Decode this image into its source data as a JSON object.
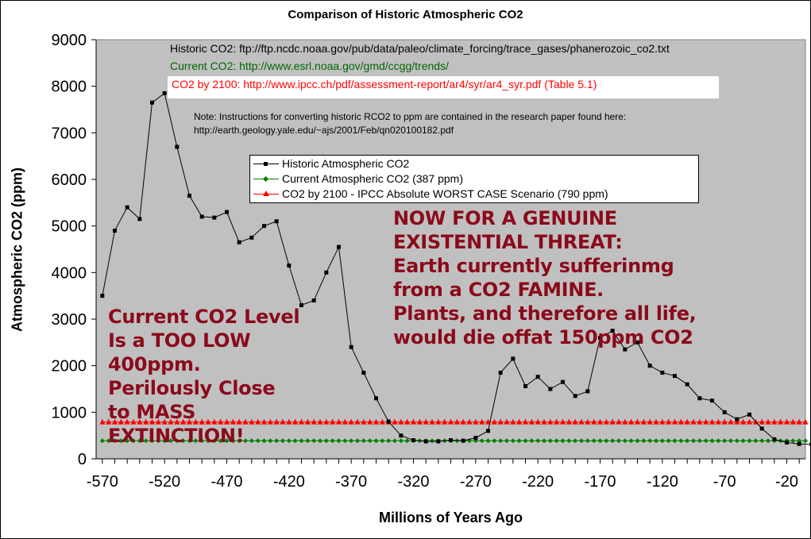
{
  "chart_data": {
    "type": "line",
    "title": "Comparison of Historic Atmospheric CO2",
    "xlabel": "Millions of Years Ago",
    "ylabel": "Atmospheric CO2 (ppm)",
    "xlim": [
      -575,
      -5
    ],
    "ylim": [
      0,
      9000
    ],
    "x_ticks": [
      -570,
      -520,
      -470,
      -420,
      -370,
      -320,
      -270,
      -220,
      -170,
      -120,
      -70,
      -20
    ],
    "y_ticks": [
      0,
      1000,
      2000,
      3000,
      4000,
      5000,
      6000,
      7000,
      8000,
      9000
    ],
    "grid": false,
    "series": [
      {
        "name": "Historic Atmospheric CO2",
        "color": "#000000",
        "marker": "square",
        "x": [
          -570,
          -560,
          -550,
          -540,
          -530,
          -520,
          -510,
          -500,
          -490,
          -480,
          -470,
          -460,
          -450,
          -440,
          -430,
          -420,
          -410,
          -400,
          -390,
          -380,
          -370,
          -360,
          -350,
          -340,
          -330,
          -320,
          -310,
          -300,
          -290,
          -280,
          -270,
          -260,
          -250,
          -240,
          -230,
          -220,
          -210,
          -200,
          -190,
          -180,
          -170,
          -160,
          -150,
          -140,
          -130,
          -120,
          -110,
          -100,
          -90,
          -80,
          -70,
          -60,
          -50,
          -40,
          -30,
          -20,
          -10,
          0
        ],
        "values": [
          3500,
          4900,
          5400,
          5150,
          7650,
          7850,
          6700,
          5650,
          5200,
          5180,
          5300,
          4650,
          4750,
          5000,
          5100,
          4150,
          3300,
          3400,
          4000,
          4550,
          2400,
          1850,
          1300,
          800,
          500,
          400,
          375,
          375,
          400,
          390,
          450,
          600,
          1850,
          2150,
          1560,
          1760,
          1500,
          1650,
          1350,
          1450,
          2600,
          2750,
          2350,
          2500,
          2000,
          1850,
          1780,
          1600,
          1300,
          1250,
          1000,
          850,
          950,
          650,
          420,
          350,
          320,
          310
        ]
      },
      {
        "name": "Current Atmospheric CO2 (387 ppm)",
        "color": "#008000",
        "marker": "diamond",
        "constant": 387
      },
      {
        "name": "CO2 by 2100 - IPCC Absolute WORST CASE Scenario (790 ppm)",
        "color": "#ff0000",
        "marker": "triangle",
        "constant": 790
      }
    ],
    "plot_background": "#c0c0c0",
    "sources": {
      "historic": "Historic CO2: ftp://ftp.ncdc.noaa.gov/pub/data/paleo/climate_forcing/trace_gases/phanerozoic_co2.txt",
      "current": "Current CO2: http://www.esrl.noaa.gov/gmd/ccgg/trends/",
      "ipcc": "CO2 by 2100: http://www.ipcc.ch/pdf/assessment-report/ar4/syr/ar4_syr.pdf (Table 5.1)"
    },
    "note_line1": "Note: Instructions for converting historic RCO2 to ppm are contained in the research paper found here:",
    "note_line2": "http://earth.geology.yale.edu/~ajs/2001/Feb/qn020100182.pdf",
    "annotations": {
      "left": "Current CO2 Level\nIs a TOO LOW\n400ppm.\nPerilously Close\nto MASS\nEXTINCTION!",
      "right": "NOW FOR A GENUINE\nEXISTENTIAL THREAT:\nEarth currently sufferinmg\nfrom a CO2 FAMINE.\nPlants, and therefore all life,\nwould die offat 150ppm CO2"
    },
    "annotation_color": "#8b0a1a"
  }
}
